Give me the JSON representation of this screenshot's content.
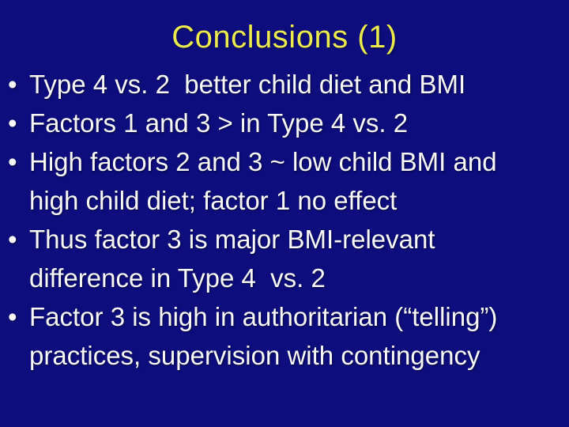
{
  "slide": {
    "title": "Conclusions (1)",
    "bullet_char": "•",
    "bullets": [
      {
        "lines": [
          "Type 4 vs. 2  better child diet and BMI"
        ]
      },
      {
        "lines": [
          "Factors 1 and 3 > in Type 4 vs. 2"
        ]
      },
      {
        "lines": [
          "High factors 2 and 3 ~ low child BMI and",
          "high child diet; factor 1 no effect"
        ]
      },
      {
        "lines": [
          "Thus factor 3 is major BMI-relevant",
          "difference in Type 4  vs. 2"
        ]
      },
      {
        "lines": [
          "Factor 3 is high in authoritarian (“telling”)",
          "practices, supervision with contingency"
        ]
      }
    ],
    "colors": {
      "background": "#0d0d7e",
      "title": "#ebeb50",
      "body_text": "#f8f8f8"
    }
  }
}
